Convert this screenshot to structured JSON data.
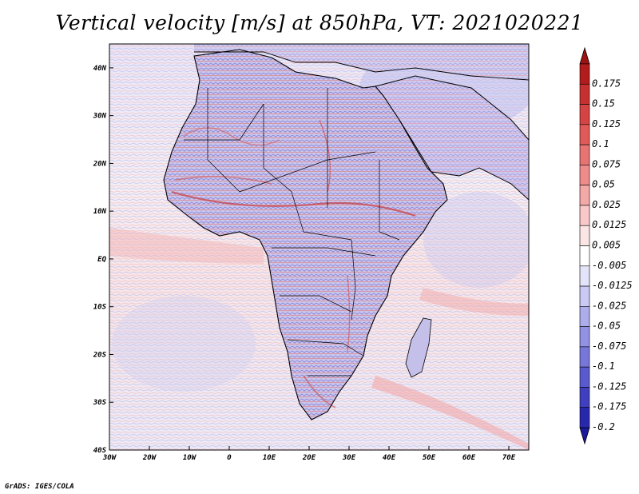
{
  "title": "Vertical velocity [m/s] at 850hPa, VT: 2021020221",
  "footer": "GrADS: IGES/COLA",
  "map": {
    "lat_labels": [
      "40N",
      "30N",
      "20N",
      "10N",
      "EQ",
      "10S",
      "20S",
      "30S",
      "40S"
    ],
    "lon_labels": [
      "30W",
      "20W",
      "10W",
      "0",
      "10E",
      "20E",
      "30E",
      "40E",
      "50E",
      "60E",
      "70E"
    ],
    "lon_range": [
      -30,
      75
    ],
    "lat_range": [
      -40,
      45
    ]
  },
  "colorbar": {
    "levels": [
      {
        "label": "0.175",
        "color": "#b31c1c"
      },
      {
        "label": "0.15",
        "color": "#c63030"
      },
      {
        "label": "0.125",
        "color": "#d44444"
      },
      {
        "label": "0.1",
        "color": "#e05a5a"
      },
      {
        "label": "0.075",
        "color": "#e87373"
      },
      {
        "label": "0.05",
        "color": "#ee8c8c"
      },
      {
        "label": "0.025",
        "color": "#f4a9a9"
      },
      {
        "label": "0.0125",
        "color": "#f9c9c9"
      },
      {
        "label": "0.005",
        "color": "#fce5e5"
      },
      {
        "label": "-0.005",
        "color": "#ffffff"
      },
      {
        "label": "-0.0125",
        "color": "#e3e3f9"
      },
      {
        "label": "-0.025",
        "color": "#c9c9f3"
      },
      {
        "label": "-0.05",
        "color": "#adadec"
      },
      {
        "label": "-0.075",
        "color": "#9292e4"
      },
      {
        "label": "-0.1",
        "color": "#7777da"
      },
      {
        "label": "-0.125",
        "color": "#5a5acf"
      },
      {
        "label": "-0.175",
        "color": "#3f3fbf"
      },
      {
        "label": "-0.2",
        "color": "#2828ac"
      }
    ],
    "top_color": "#9e1212",
    "bottom_color": "#1a1a9a"
  }
}
